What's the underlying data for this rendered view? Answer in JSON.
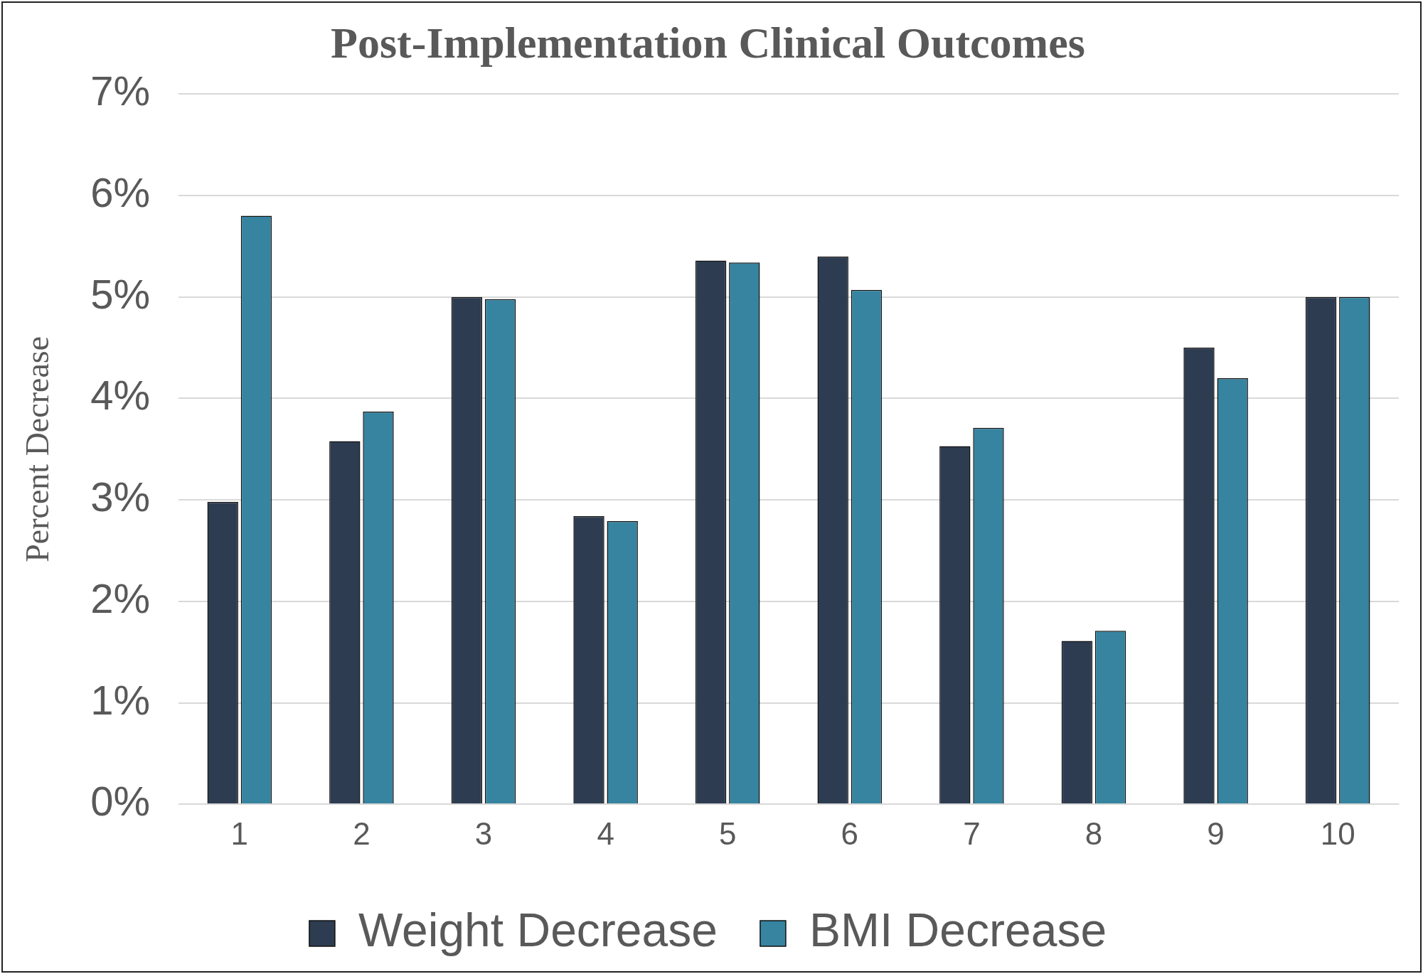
{
  "chart_data": {
    "type": "bar",
    "title": "Post-Implementation Clinical Outcomes",
    "ylabel": "Percent Decrease",
    "categories": [
      "1",
      "2",
      "3",
      "4",
      "5",
      "6",
      "7",
      "8",
      "9",
      "10"
    ],
    "series": [
      {
        "name": "Weight Decrease",
        "color": "#2d3c50",
        "values": [
          2.98,
          3.58,
          5.0,
          2.84,
          5.36,
          5.4,
          3.53,
          1.61,
          4.5,
          5.0
        ]
      },
      {
        "name": "BMI Decrease",
        "color": "#3784a0",
        "values": [
          5.8,
          3.87,
          4.98,
          2.79,
          5.34,
          5.07,
          3.71,
          1.71,
          4.2,
          5.0
        ]
      }
    ],
    "ylim": [
      0,
      7
    ],
    "yticks": [
      {
        "value": 0,
        "label": "0%"
      },
      {
        "value": 1,
        "label": "1%"
      },
      {
        "value": 2,
        "label": "2%"
      },
      {
        "value": 3,
        "label": "3%"
      },
      {
        "value": 4,
        "label": "4%"
      },
      {
        "value": 5,
        "label": "5%"
      },
      {
        "value": 6,
        "label": "6%"
      },
      {
        "value": 7,
        "label": "7%"
      }
    ],
    "grid": "y",
    "legend": "bottom"
  }
}
